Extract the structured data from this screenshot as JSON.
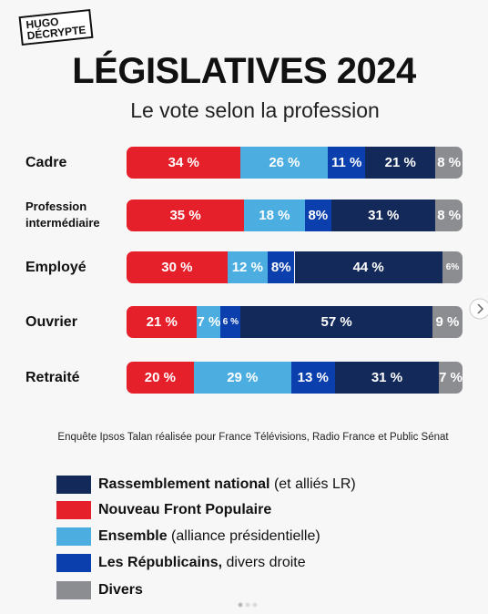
{
  "logo": {
    "line1": "HUGO",
    "line2": "DÉCRYPTE"
  },
  "chart_data": {
    "type": "stacked-bar-horizontal",
    "title": "LÉGISLATIVES 2024",
    "subtitle": "Le vote selon la profession",
    "source": "Enquête Ipsos Talan réalisée pour France Télévisions, Radio France et Public Sénat",
    "categories": [
      "Cadre",
      "Profession intermédiaire",
      "Employé",
      "Ouvrier",
      "Retraité"
    ],
    "xlim": [
      0,
      100
    ],
    "series": [
      {
        "name": "Rassemblement national",
        "detail": "(et alliés LR)",
        "color": "#13295a",
        "values": [
          21,
          31,
          44,
          57,
          31
        ],
        "value_labels": [
          "21 %",
          "31 %",
          "44 %",
          "57 %",
          "31 %"
        ]
      },
      {
        "name": "Nouveau Front Populaire",
        "color": "#e5202b",
        "values": [
          34,
          35,
          30,
          21,
          20
        ],
        "value_labels": [
          "34 %",
          "35 %",
          "30 %",
          "21 %",
          "20 %"
        ]
      },
      {
        "name": "Ensemble",
        "detail": "(alliance présidentielle)",
        "color": "#4caee0",
        "values": [
          26,
          18,
          12,
          7,
          29
        ],
        "value_labels": [
          "26 %",
          "18 %",
          "12 %",
          "7 %",
          "29 %"
        ]
      },
      {
        "name": "Les Républicains,",
        "detail": "divers droite",
        "color": "#0b3fae",
        "values": [
          11,
          8,
          8,
          6,
          13
        ],
        "value_labels": [
          "11 %",
          "8%",
          "8%",
          "6 %",
          "13 %"
        ]
      },
      {
        "name": "Divers",
        "color": "#8b8d90",
        "values": [
          8,
          8,
          6,
          9,
          7
        ],
        "value_labels": [
          "8 %",
          "8 %",
          "6%",
          "9 %",
          "7 %"
        ]
      }
    ]
  }
}
